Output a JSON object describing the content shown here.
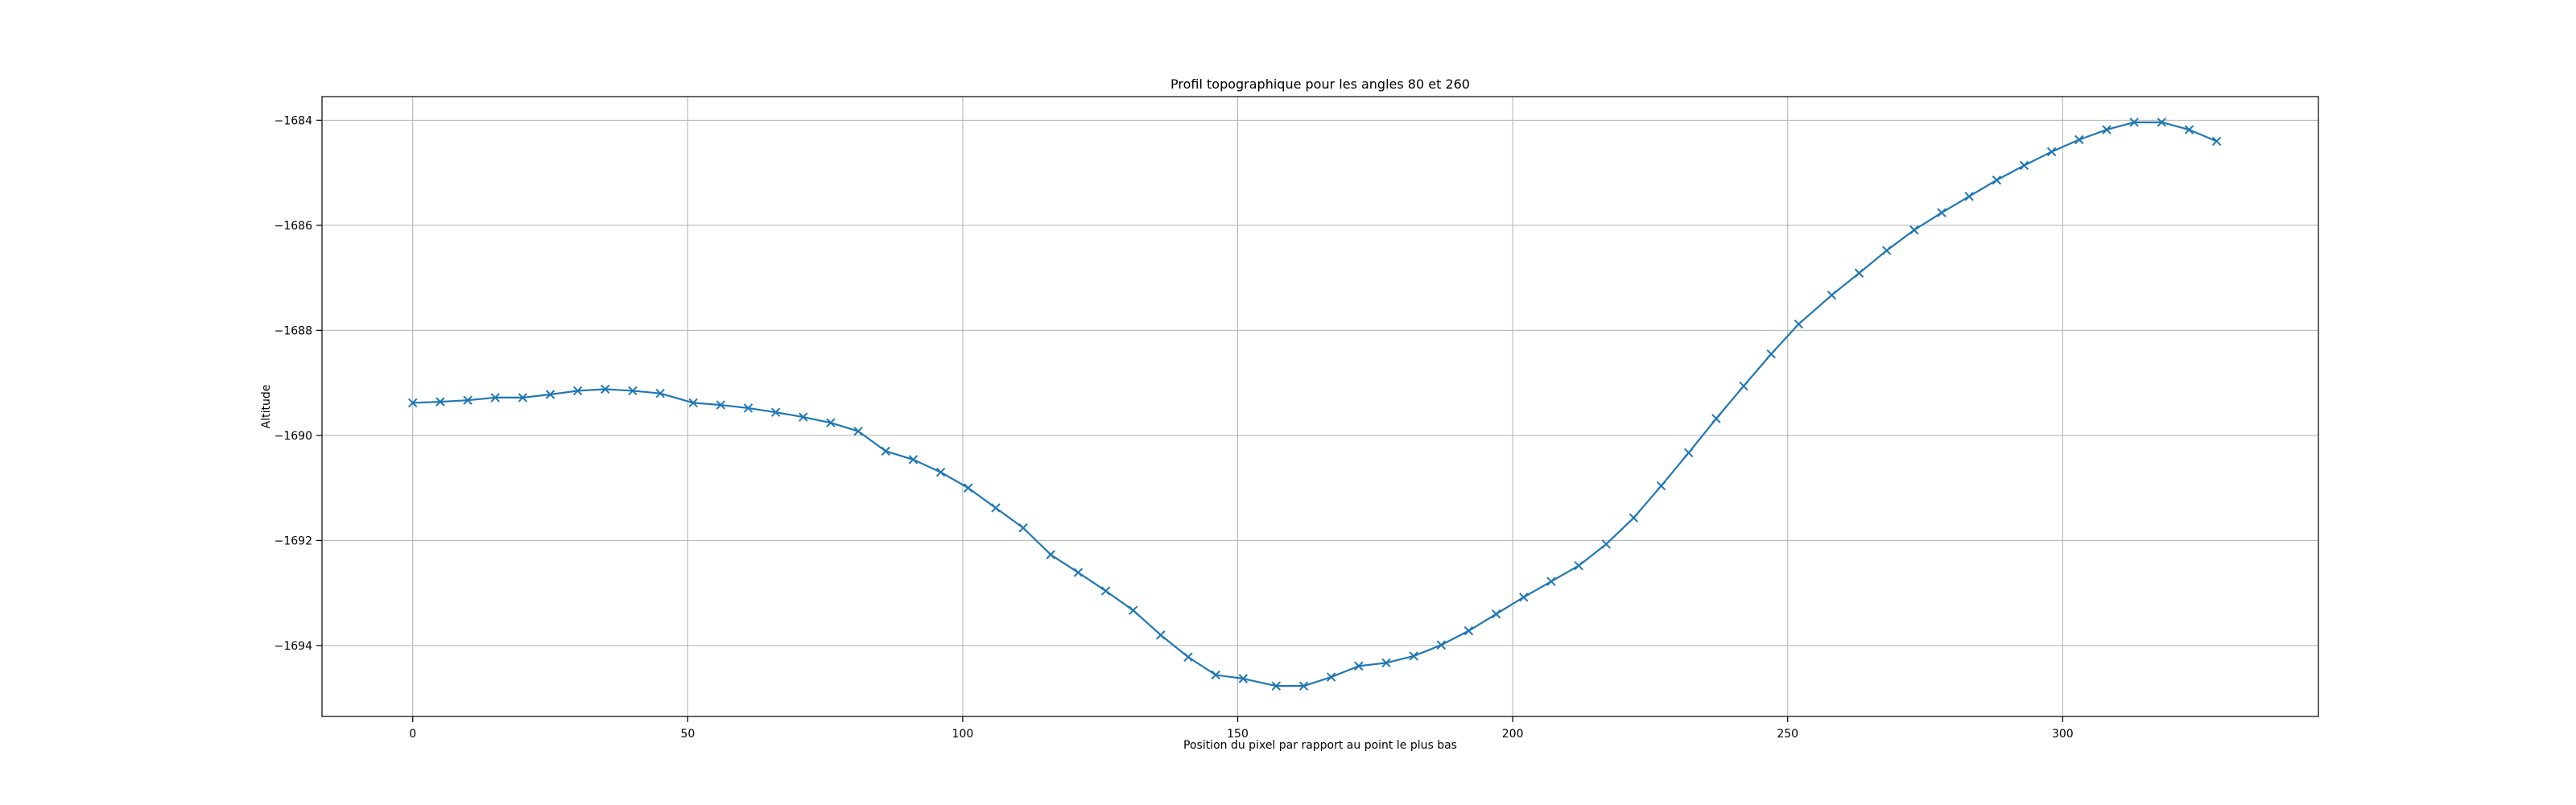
{
  "chart_data": {
    "type": "line",
    "title": "Profil topographique pour les angles 80 et 260",
    "xlabel": "Position du pixel par rapport au point le plus bas",
    "ylabel": "Altitude",
    "xlim": [
      -16.5,
      346.5
    ],
    "ylim": [
      -1695.35,
      -1683.55
    ],
    "x_ticks": [
      0,
      50,
      100,
      150,
      200,
      250,
      300
    ],
    "x_tick_labels": [
      "0",
      "50",
      "100",
      "150",
      "200",
      "250",
      "300"
    ],
    "y_ticks": [
      -1684,
      -1686,
      -1688,
      -1690,
      -1692,
      -1694
    ],
    "y_tick_labels": [
      "−1684",
      "−1686",
      "−1688",
      "−1690",
      "−1692",
      "−1694"
    ],
    "grid": true,
    "marker": "x",
    "line_color": "#1f77b4",
    "series": [
      {
        "x": [
          0,
          5,
          10,
          15,
          20,
          25,
          30,
          35,
          40,
          45,
          51,
          56,
          61,
          66,
          71,
          76,
          81,
          86,
          91,
          96,
          101,
          106,
          111,
          116,
          121,
          126,
          131,
          136,
          141,
          146,
          151,
          157,
          162,
          167,
          172,
          177,
          182,
          187,
          192,
          197,
          202,
          207,
          212,
          217,
          222,
          227,
          232,
          237,
          242,
          247,
          252,
          258,
          263,
          268,
          273,
          278,
          283,
          288,
          293,
          298,
          303,
          308,
          313,
          318,
          323,
          328
        ],
        "y": [
          -1689.38,
          -1689.36,
          -1689.33,
          -1689.28,
          -1689.28,
          -1689.22,
          -1689.15,
          -1689.12,
          -1689.15,
          -1689.2,
          -1689.38,
          -1689.42,
          -1689.48,
          -1689.56,
          -1689.65,
          -1689.76,
          -1689.92,
          -1690.3,
          -1690.46,
          -1690.7,
          -1691.0,
          -1691.38,
          -1691.76,
          -1692.27,
          -1692.61,
          -1692.96,
          -1693.33,
          -1693.8,
          -1694.22,
          -1694.56,
          -1694.63,
          -1694.77,
          -1694.77,
          -1694.6,
          -1694.39,
          -1694.33,
          -1694.2,
          -1693.99,
          -1693.72,
          -1693.4,
          -1693.08,
          -1692.78,
          -1692.48,
          -1692.07,
          -1691.57,
          -1690.96,
          -1690.33,
          -1689.68,
          -1689.06,
          -1688.45,
          -1687.88,
          -1687.33,
          -1686.91,
          -1686.48,
          -1686.09,
          -1685.76,
          -1685.45,
          -1685.14,
          -1684.86,
          -1684.6,
          -1684.37,
          -1684.18,
          -1684.04,
          -1684.04,
          -1684.18,
          -1684.4
        ]
      }
    ]
  }
}
